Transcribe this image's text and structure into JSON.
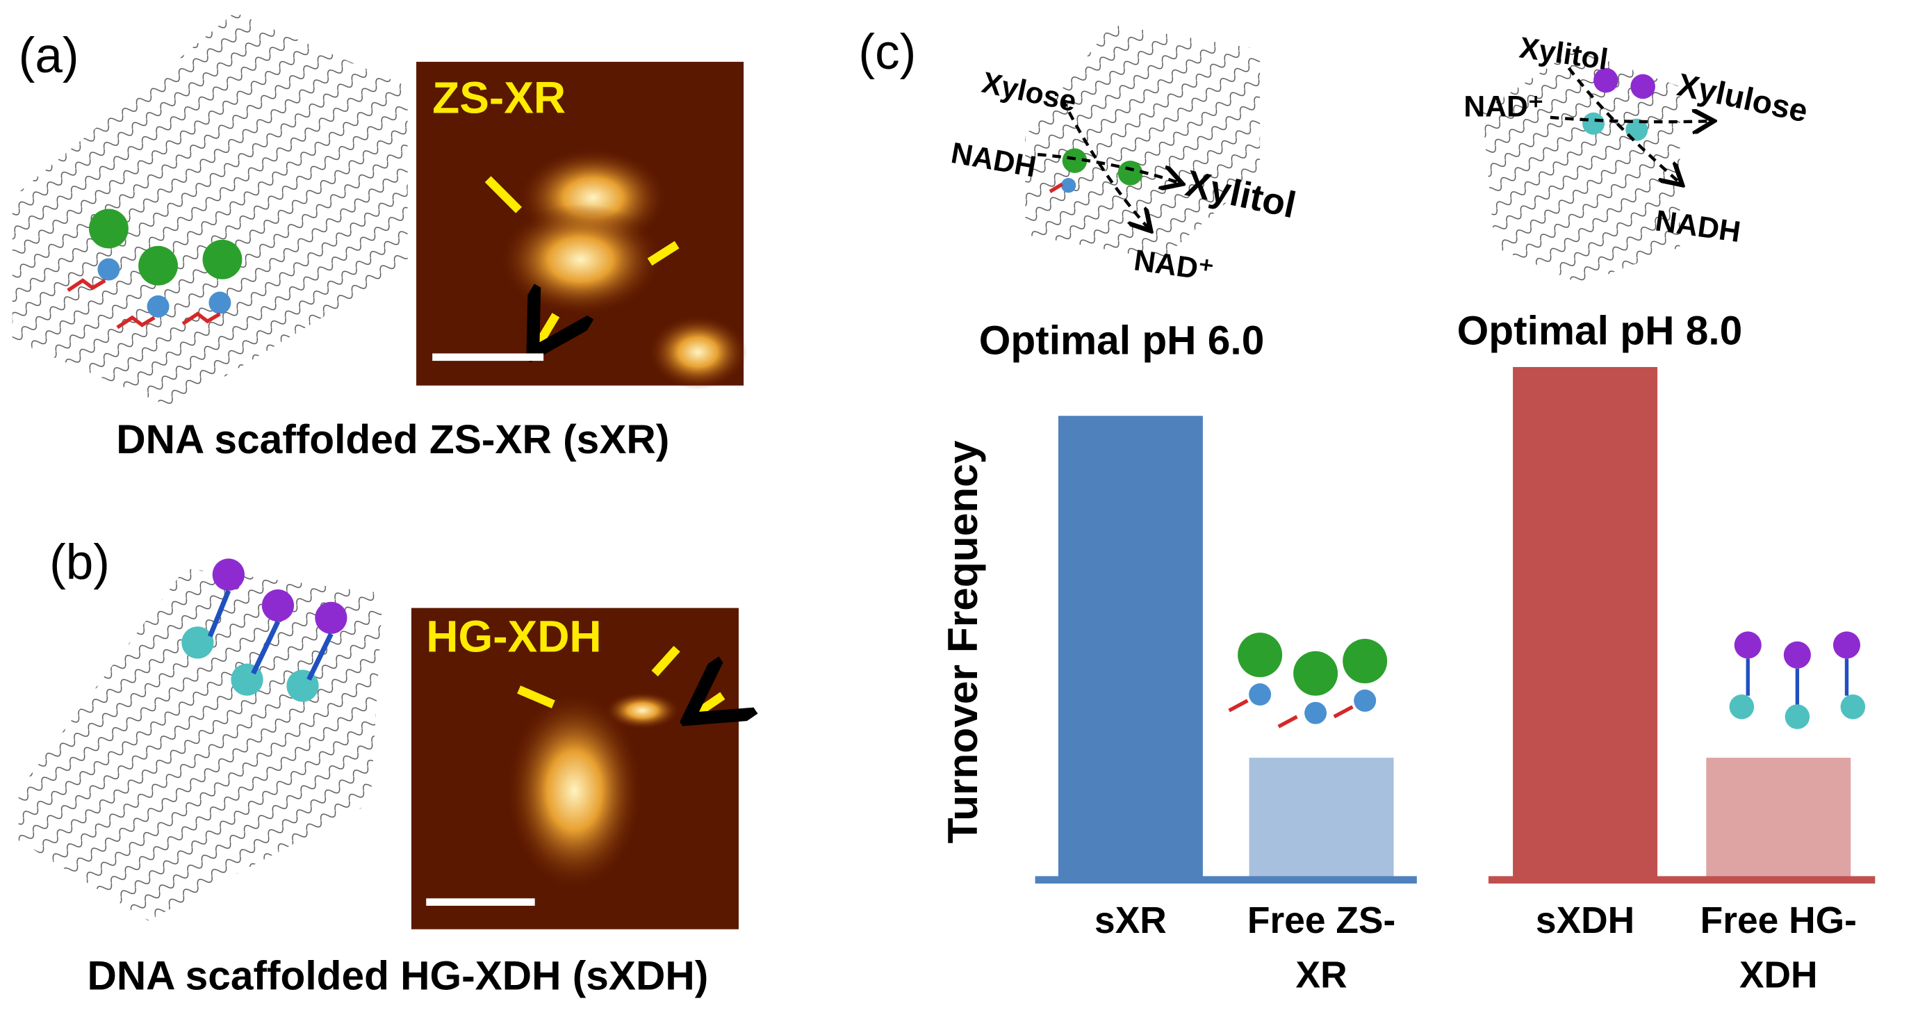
{
  "panel_a": {
    "label": "(a)",
    "afm_label": "ZS-XR",
    "caption": "DNA scaffolded ZS-XR (sXR)"
  },
  "panel_b": {
    "label": "(b)",
    "afm_label": "HG-XDH",
    "caption": "DNA scaffolded HG-XDH (sXDH)"
  },
  "panel_c": {
    "label": "(c)",
    "scheme_1": {
      "substrate": "Xylose",
      "cofactor_in": "NADH",
      "product": "Xylitol",
      "cofactor_out": "NAD⁺",
      "condition": "Optimal pH 6.0"
    },
    "scheme_2": {
      "substrate": "Xylitol",
      "cofactor_in": "NAD⁺",
      "product": "Xylulose",
      "cofactor_out": "NADH",
      "condition": "Optimal pH 8.0"
    }
  },
  "chart_data": [
    {
      "type": "bar",
      "ylabel": "Turnover Frequency",
      "categories": [
        "sXR",
        "Free ZS-XR"
      ],
      "values": [
        3.8,
        1.0
      ],
      "colors": [
        "#4f81bd",
        "#a7c0de"
      ],
      "ylim": [
        0,
        4.2
      ]
    },
    {
      "type": "bar",
      "categories": [
        "sXDH",
        "Free HG-XDH"
      ],
      "values": [
        4.2,
        1.0
      ],
      "colors": [
        "#c0504d",
        "#dea4a3"
      ],
      "ylim": [
        0,
        4.2
      ]
    }
  ]
}
